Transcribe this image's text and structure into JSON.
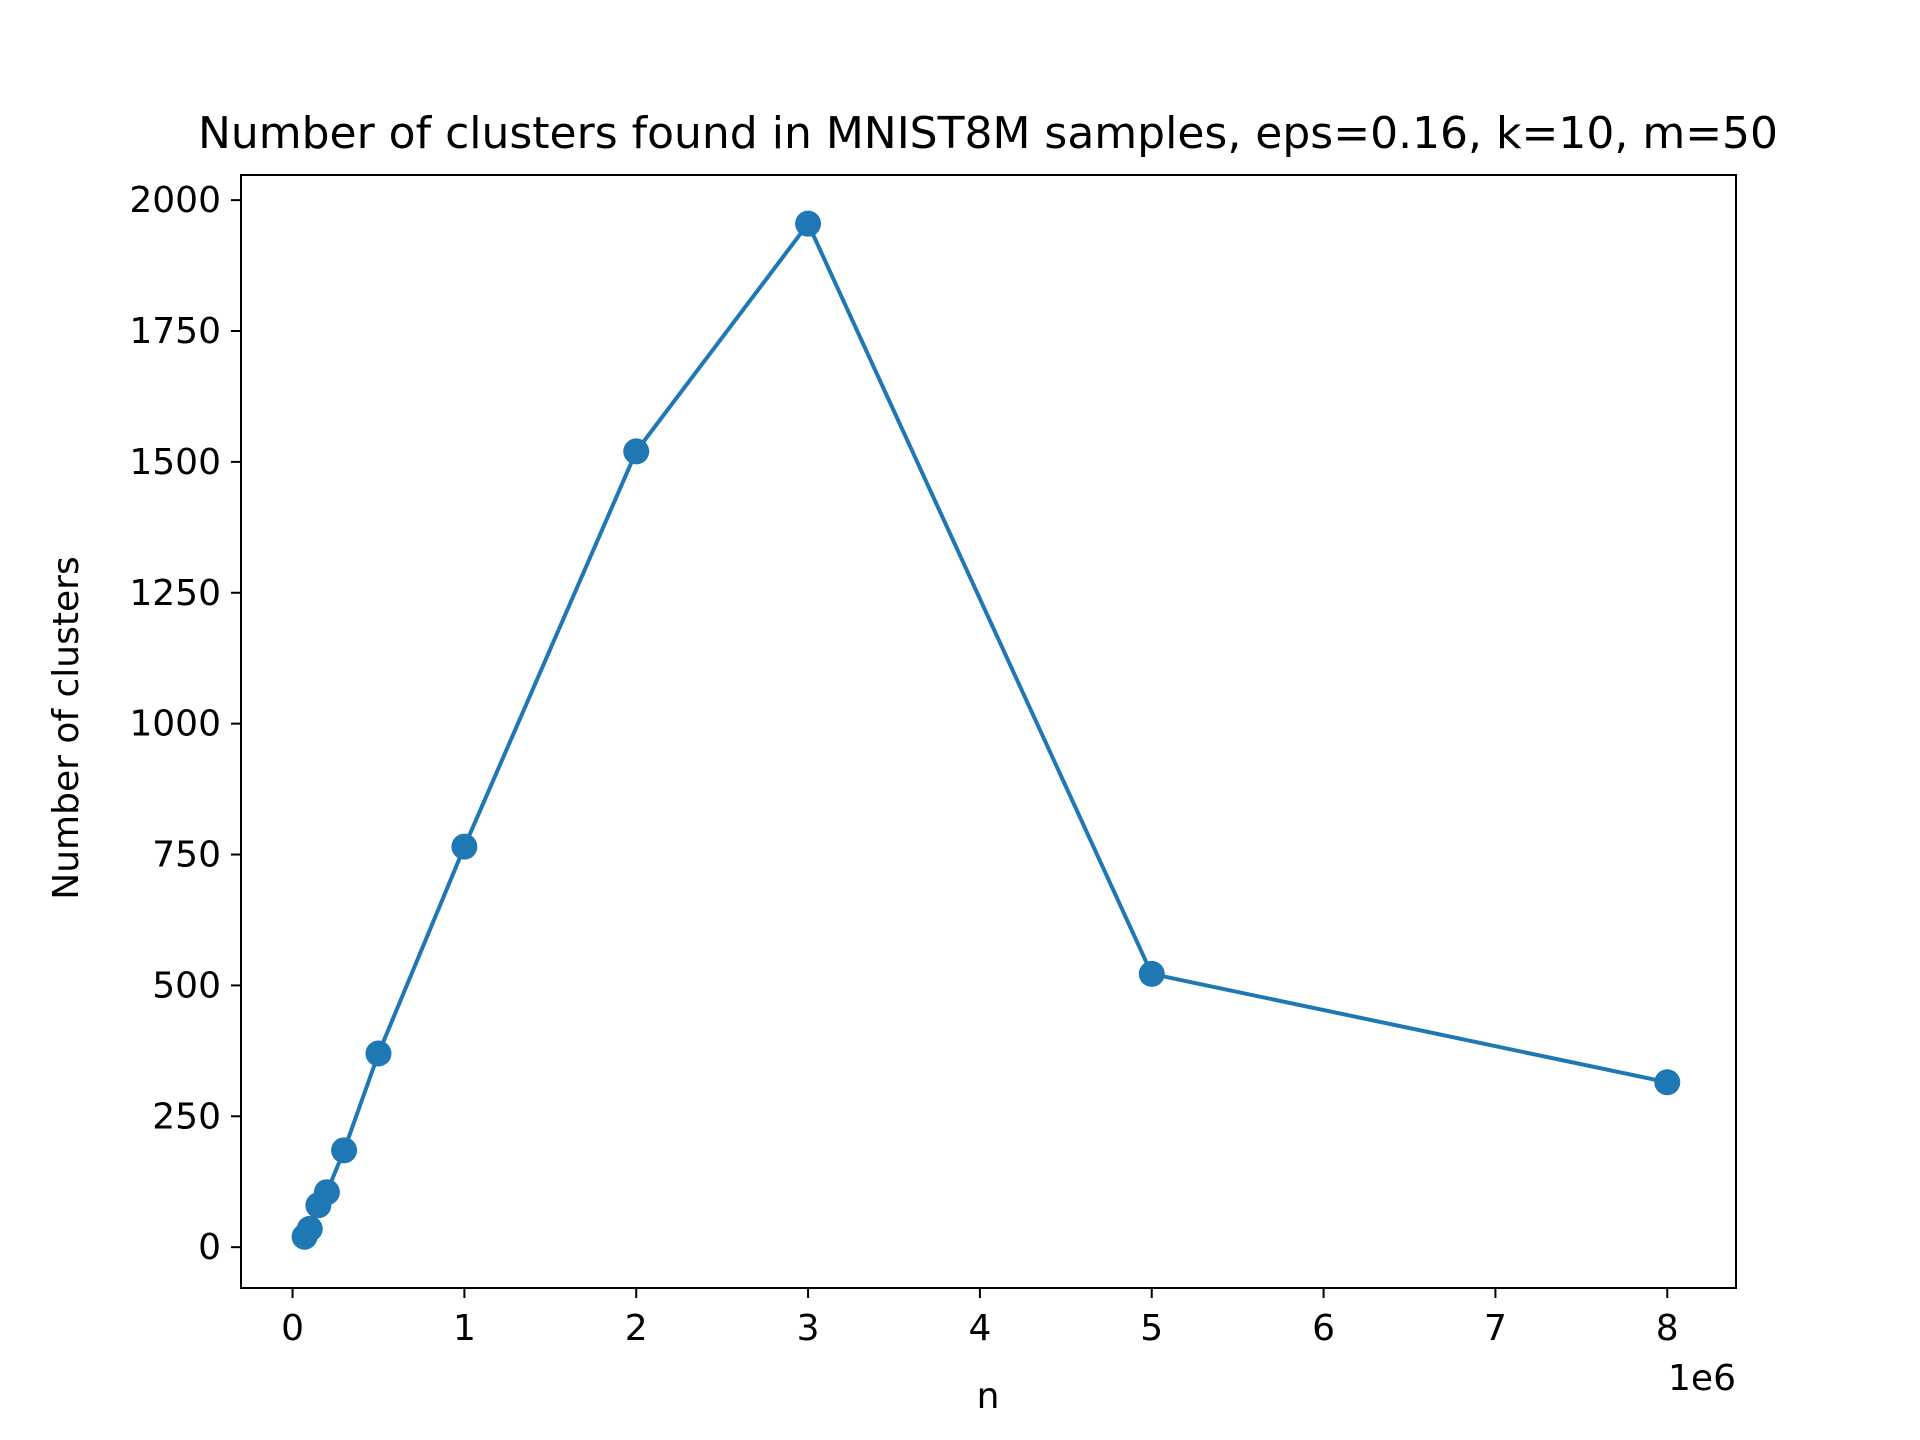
{
  "chart_data": {
    "type": "line",
    "title": "Number of clusters found in MNIST8M samples, eps=0.16, k=10, m=50",
    "xlabel": "n",
    "ylabel": "Number of clusters",
    "x_offset_label": "1e6",
    "xlim": [
      -300000,
      8400000
    ],
    "ylim": [
      -78,
      2048
    ],
    "x_ticks": [
      0,
      1000000,
      2000000,
      3000000,
      4000000,
      5000000,
      6000000,
      7000000,
      8000000
    ],
    "x_tick_labels": [
      "0",
      "1",
      "2",
      "3",
      "4",
      "5",
      "6",
      "7",
      "8"
    ],
    "y_ticks": [
      0,
      250,
      500,
      750,
      1000,
      1250,
      1500,
      1750,
      2000
    ],
    "y_tick_labels": [
      "0",
      "250",
      "500",
      "750",
      "1000",
      "1250",
      "1500",
      "1750",
      "2000"
    ],
    "grid": false,
    "legend": "none",
    "series": [
      {
        "color": "#1f77b4",
        "marker": "circle",
        "x": [
          70000,
          100000,
          150000,
          200000,
          300000,
          500000,
          1000000,
          2000000,
          3000000,
          5000000,
          8000000
        ],
        "y": [
          20,
          35,
          80,
          105,
          185,
          370,
          765,
          1520,
          1955,
          522,
          315
        ]
      }
    ]
  }
}
